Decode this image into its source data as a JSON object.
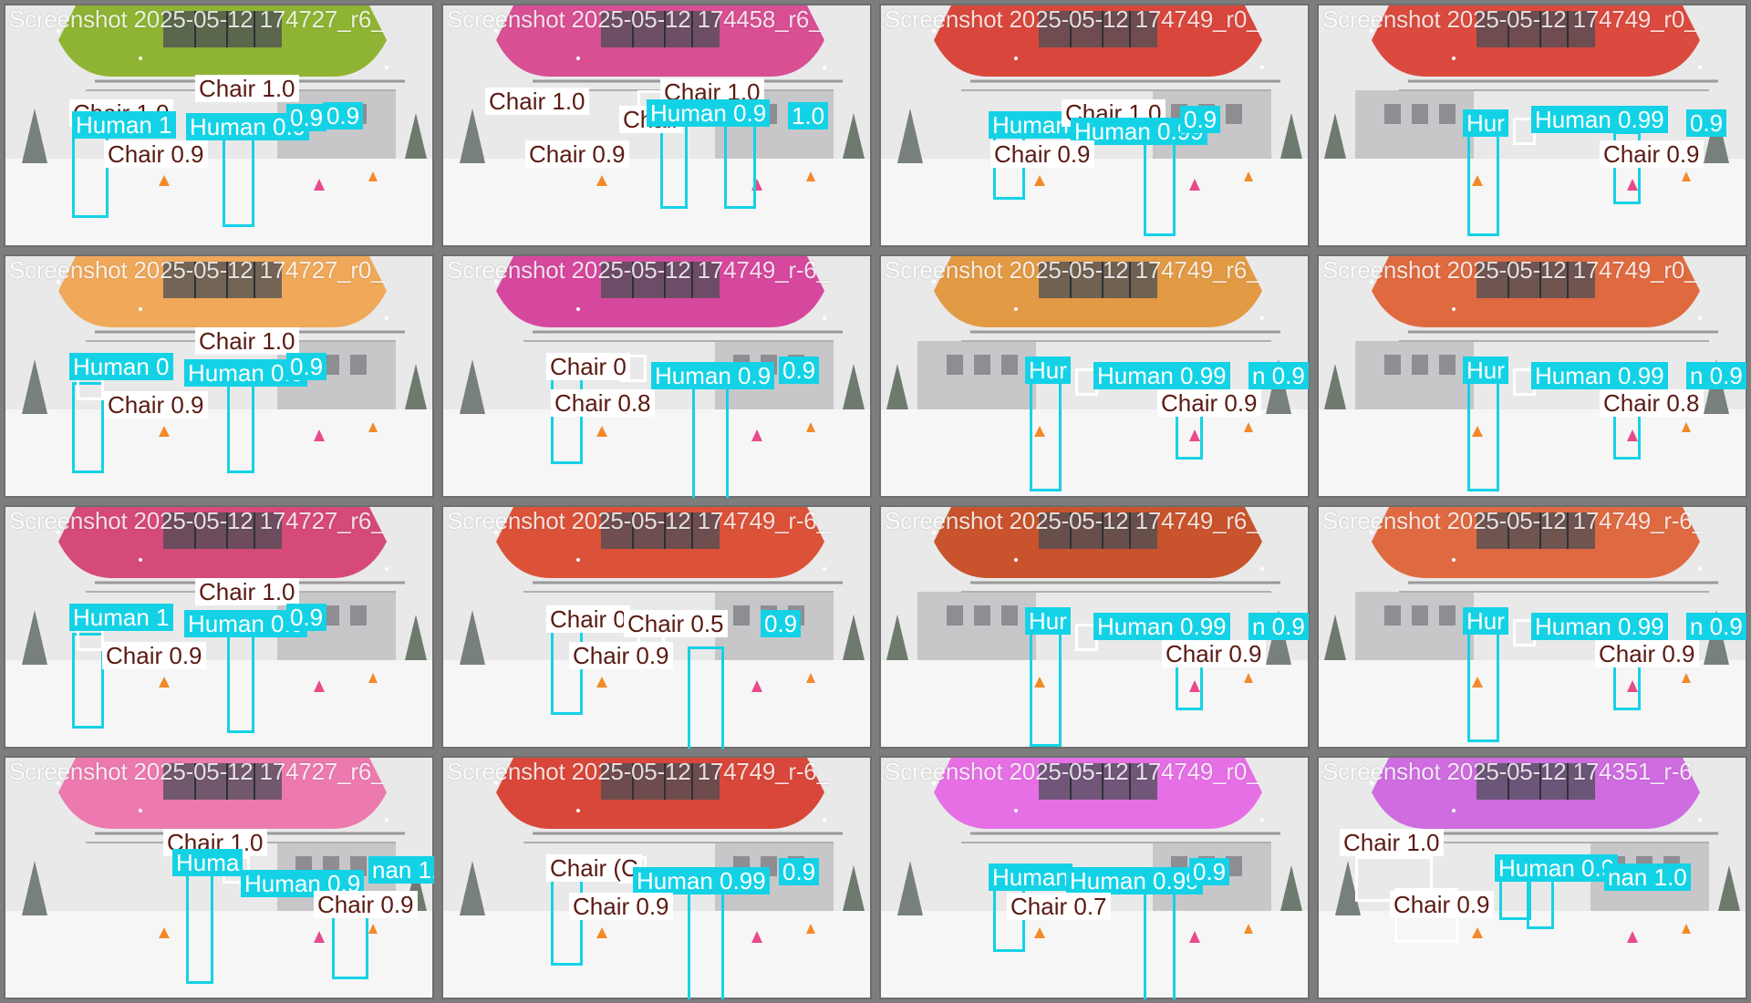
{
  "mosaic": {
    "colors": {
      "human": "#14d2e6",
      "chair": "#ffffff",
      "chair_text": "#5a1a12",
      "border": "#7d7d7d"
    },
    "tiles": [
      {
        "title": "Screenshot 2025-05-12 174727_r6_",
        "cabin": "#8fb433",
        "flipped": false,
        "labels": [
          {
            "cls": "chair",
            "text": "Chair 1.0"
          },
          {
            "cls": "chair",
            "text": "Chair 1.0"
          },
          {
            "cls": "human",
            "text": "Human 1"
          },
          {
            "cls": "human",
            "text": "Human 0.9"
          },
          {
            "cls": "human",
            "text": "0.9"
          },
          {
            "cls": "human",
            "text": "0.9"
          },
          {
            "cls": "chair",
            "text": "Chair 0.9"
          }
        ]
      },
      {
        "title": "Screenshot 2025-05-12 174458_r6_",
        "cabin": "#d84f93",
        "flipped": false,
        "labels": [
          {
            "cls": "chair",
            "text": "Chair 1.0"
          },
          {
            "cls": "chair",
            "text": "Chair 1.0"
          },
          {
            "cls": "chair",
            "text": "Chair"
          },
          {
            "cls": "human",
            "text": "Human 0.9"
          },
          {
            "cls": "human",
            "text": "1.0"
          },
          {
            "cls": "chair",
            "text": "Chair 0.9"
          }
        ]
      },
      {
        "title": "Screenshot 2025-05-12 174749_r0_",
        "cabin": "#d9473c",
        "flipped": false,
        "labels": [
          {
            "cls": "human",
            "text": "Human"
          },
          {
            "cls": "chair",
            "text": "Chair 1.0"
          },
          {
            "cls": "human",
            "text": "Human 0.99"
          },
          {
            "cls": "human",
            "text": "0.9"
          },
          {
            "cls": "chair",
            "text": "Chair 0.9"
          }
        ]
      },
      {
        "title": "Screenshot 2025-05-12 174749_r0_",
        "cabin": "#db4a3e",
        "flipped": true,
        "labels": [
          {
            "cls": "human",
            "text": "Hur"
          },
          {
            "cls": "human",
            "text": "Human 0.99"
          },
          {
            "cls": "human",
            "text": "0.9"
          },
          {
            "cls": "chair",
            "text": "Chair 0.9"
          }
        ]
      },
      {
        "title": "Screenshot 2025-05-12 174727_r0_",
        "cabin": "#f0a85a",
        "flipped": false,
        "labels": [
          {
            "cls": "chair",
            "text": "Chair 1.0"
          },
          {
            "cls": "human",
            "text": "Human 0"
          },
          {
            "cls": "human",
            "text": "Human 0.9"
          },
          {
            "cls": "human",
            "text": "0.9"
          },
          {
            "cls": "chair",
            "text": "Chair 0.9"
          }
        ]
      },
      {
        "title": "Screenshot 2025-05-12 174749_r-6_",
        "cabin": "#d6489e",
        "flipped": false,
        "labels": [
          {
            "cls": "chair",
            "text": "Chair 0"
          },
          {
            "cls": "human",
            "text": "Human 0.9"
          },
          {
            "cls": "human",
            "text": "0.9"
          },
          {
            "cls": "chair",
            "text": "Chair 0.8"
          }
        ]
      },
      {
        "title": "Screenshot 2025-05-12 174749_r6_",
        "cabin": "#e39a44",
        "flipped": true,
        "labels": [
          {
            "cls": "human",
            "text": "Hur"
          },
          {
            "cls": "human",
            "text": "Human 0.99"
          },
          {
            "cls": "human",
            "text": "n 0.9"
          },
          {
            "cls": "chair",
            "text": "Chair 0.9"
          }
        ]
      },
      {
        "title": "Screenshot 2025-05-12 174749_r0_",
        "cabin": "#e06a40",
        "flipped": true,
        "labels": [
          {
            "cls": "human",
            "text": "Hur"
          },
          {
            "cls": "human",
            "text": "Human 0.99"
          },
          {
            "cls": "human",
            "text": "n 0.9"
          },
          {
            "cls": "chair",
            "text": "Chair 0.8"
          }
        ]
      },
      {
        "title": "Screenshot 2025-05-12 174727_r6_",
        "cabin": "#d64a78",
        "flipped": false,
        "labels": [
          {
            "cls": "chair",
            "text": "Chair 1.0"
          },
          {
            "cls": "human",
            "text": "Human 1"
          },
          {
            "cls": "human",
            "text": "Human 0.9"
          },
          {
            "cls": "human",
            "text": "0.9"
          },
          {
            "cls": "chair",
            "text": "Chair 0.9"
          }
        ]
      },
      {
        "title": "Screenshot 2025-05-12 174749_r-6_",
        "cabin": "#dc5238",
        "flipped": false,
        "labels": [
          {
            "cls": "chair",
            "text": "Chair 0"
          },
          {
            "cls": "chair",
            "text": "Chair 0.5"
          },
          {
            "cls": "human",
            "text": "0.9"
          },
          {
            "cls": "chair",
            "text": "Chair 0.9"
          }
        ]
      },
      {
        "title": "Screenshot 2025-05-12 174749_r6_",
        "cabin": "#c8532c",
        "flipped": true,
        "labels": [
          {
            "cls": "human",
            "text": "Hur"
          },
          {
            "cls": "human",
            "text": "Human 0.99"
          },
          {
            "cls": "human",
            "text": "n 0.9"
          },
          {
            "cls": "chair",
            "text": "Chair 0.9"
          }
        ]
      },
      {
        "title": "Screenshot 2025-05-12 174749_r-6_",
        "cabin": "#df6a42",
        "flipped": true,
        "labels": [
          {
            "cls": "human",
            "text": "Hur"
          },
          {
            "cls": "human",
            "text": "Human 0.99"
          },
          {
            "cls": "human",
            "text": "n 0.9"
          },
          {
            "cls": "chair",
            "text": "Chair 0.9"
          }
        ]
      },
      {
        "title": "Screenshot 2025-05-12 174727_r6_",
        "cabin": "#ec7aae",
        "flipped": false,
        "labels": [
          {
            "cls": "chair",
            "text": "Chair 1.0"
          },
          {
            "cls": "human",
            "text": "Huma"
          },
          {
            "cls": "human",
            "text": "Human 0.9"
          },
          {
            "cls": "human",
            "text": "nan 1.0"
          },
          {
            "cls": "chair",
            "text": "Chair 0.9"
          }
        ]
      },
      {
        "title": "Screenshot 2025-05-12 174749_r-6_",
        "cabin": "#d9473a",
        "flipped": false,
        "labels": [
          {
            "cls": "chair",
            "text": "Chair (C"
          },
          {
            "cls": "human",
            "text": "Human 0.99"
          },
          {
            "cls": "human",
            "text": "0.9"
          },
          {
            "cls": "chair",
            "text": "Chair 0.9"
          }
        ]
      },
      {
        "title": "Screenshot 2025-05-12 174749_r0_",
        "cabin": "#e66fe6",
        "flipped": false,
        "labels": [
          {
            "cls": "human",
            "text": "Human"
          },
          {
            "cls": "human",
            "text": "Human 0.99"
          },
          {
            "cls": "human",
            "text": "0.9"
          },
          {
            "cls": "chair",
            "text": "Chair 0.7"
          }
        ]
      },
      {
        "title": "Screenshot 2025-05-12 174351_r-6",
        "cabin": "#cf6ce0",
        "flipped": false,
        "labels": [
          {
            "cls": "chair",
            "text": "Chair 1.0"
          },
          {
            "cls": "human",
            "text": "Human 0.9"
          },
          {
            "cls": "human",
            "text": "nan 1.0"
          },
          {
            "cls": "chair",
            "text": "Chair 0.9"
          }
        ]
      }
    ]
  }
}
